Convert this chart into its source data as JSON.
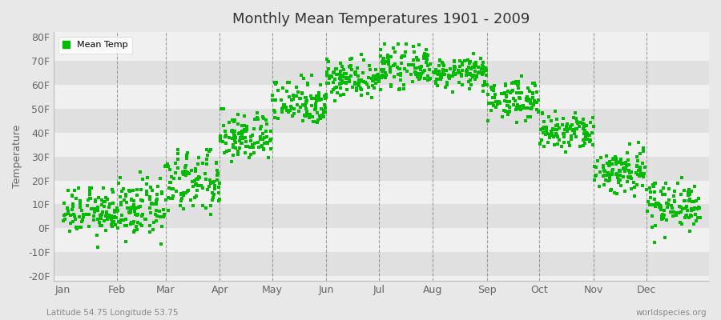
{
  "title": "Monthly Mean Temperatures 1901 - 2009",
  "ylabel": "Temperature",
  "subtitle_left": "Latitude 54.75 Longitude 53.75",
  "subtitle_right": "worldspecies.org",
  "dot_color": "#00bb00",
  "bg_color": "#e8e8e8",
  "plot_bg_color": "#f0f0f0",
  "stripe_color_dark": "#e0e0e0",
  "stripe_color_light": "#f0f0f0",
  "legend_label": "Mean Temp",
  "ytick_labels": [
    "-20F",
    "-10F",
    "0F",
    "10F",
    "20F",
    "30F",
    "40F",
    "50F",
    "60F",
    "70F",
    "80F"
  ],
  "ytick_values": [
    -20,
    -10,
    0,
    10,
    20,
    30,
    40,
    50,
    60,
    70,
    80
  ],
  "ylim": [
    -22,
    82
  ],
  "months": [
    "Jan",
    "Feb",
    "Mar",
    "Apr",
    "May",
    "Jun",
    "Jul",
    "Aug",
    "Sep",
    "Oct",
    "Nov",
    "Dec"
  ],
  "month_days": [
    31,
    28,
    31,
    30,
    31,
    30,
    31,
    31,
    30,
    31,
    30,
    31
  ],
  "month_means_F": [
    7,
    8,
    19,
    38,
    53,
    63,
    67,
    65,
    54,
    40,
    24,
    10
  ],
  "month_stds_F": [
    5,
    6,
    7,
    5,
    5,
    4,
    4,
    3,
    4,
    4,
    5,
    5
  ],
  "month_mins_F": [
    -14,
    -14,
    -1,
    24,
    40,
    52,
    58,
    55,
    44,
    28,
    9,
    -6
  ],
  "month_maxs_F": [
    17,
    26,
    33,
    50,
    64,
    74,
    77,
    73,
    64,
    50,
    36,
    22
  ],
  "n_years": 109,
  "marker_size": 8
}
